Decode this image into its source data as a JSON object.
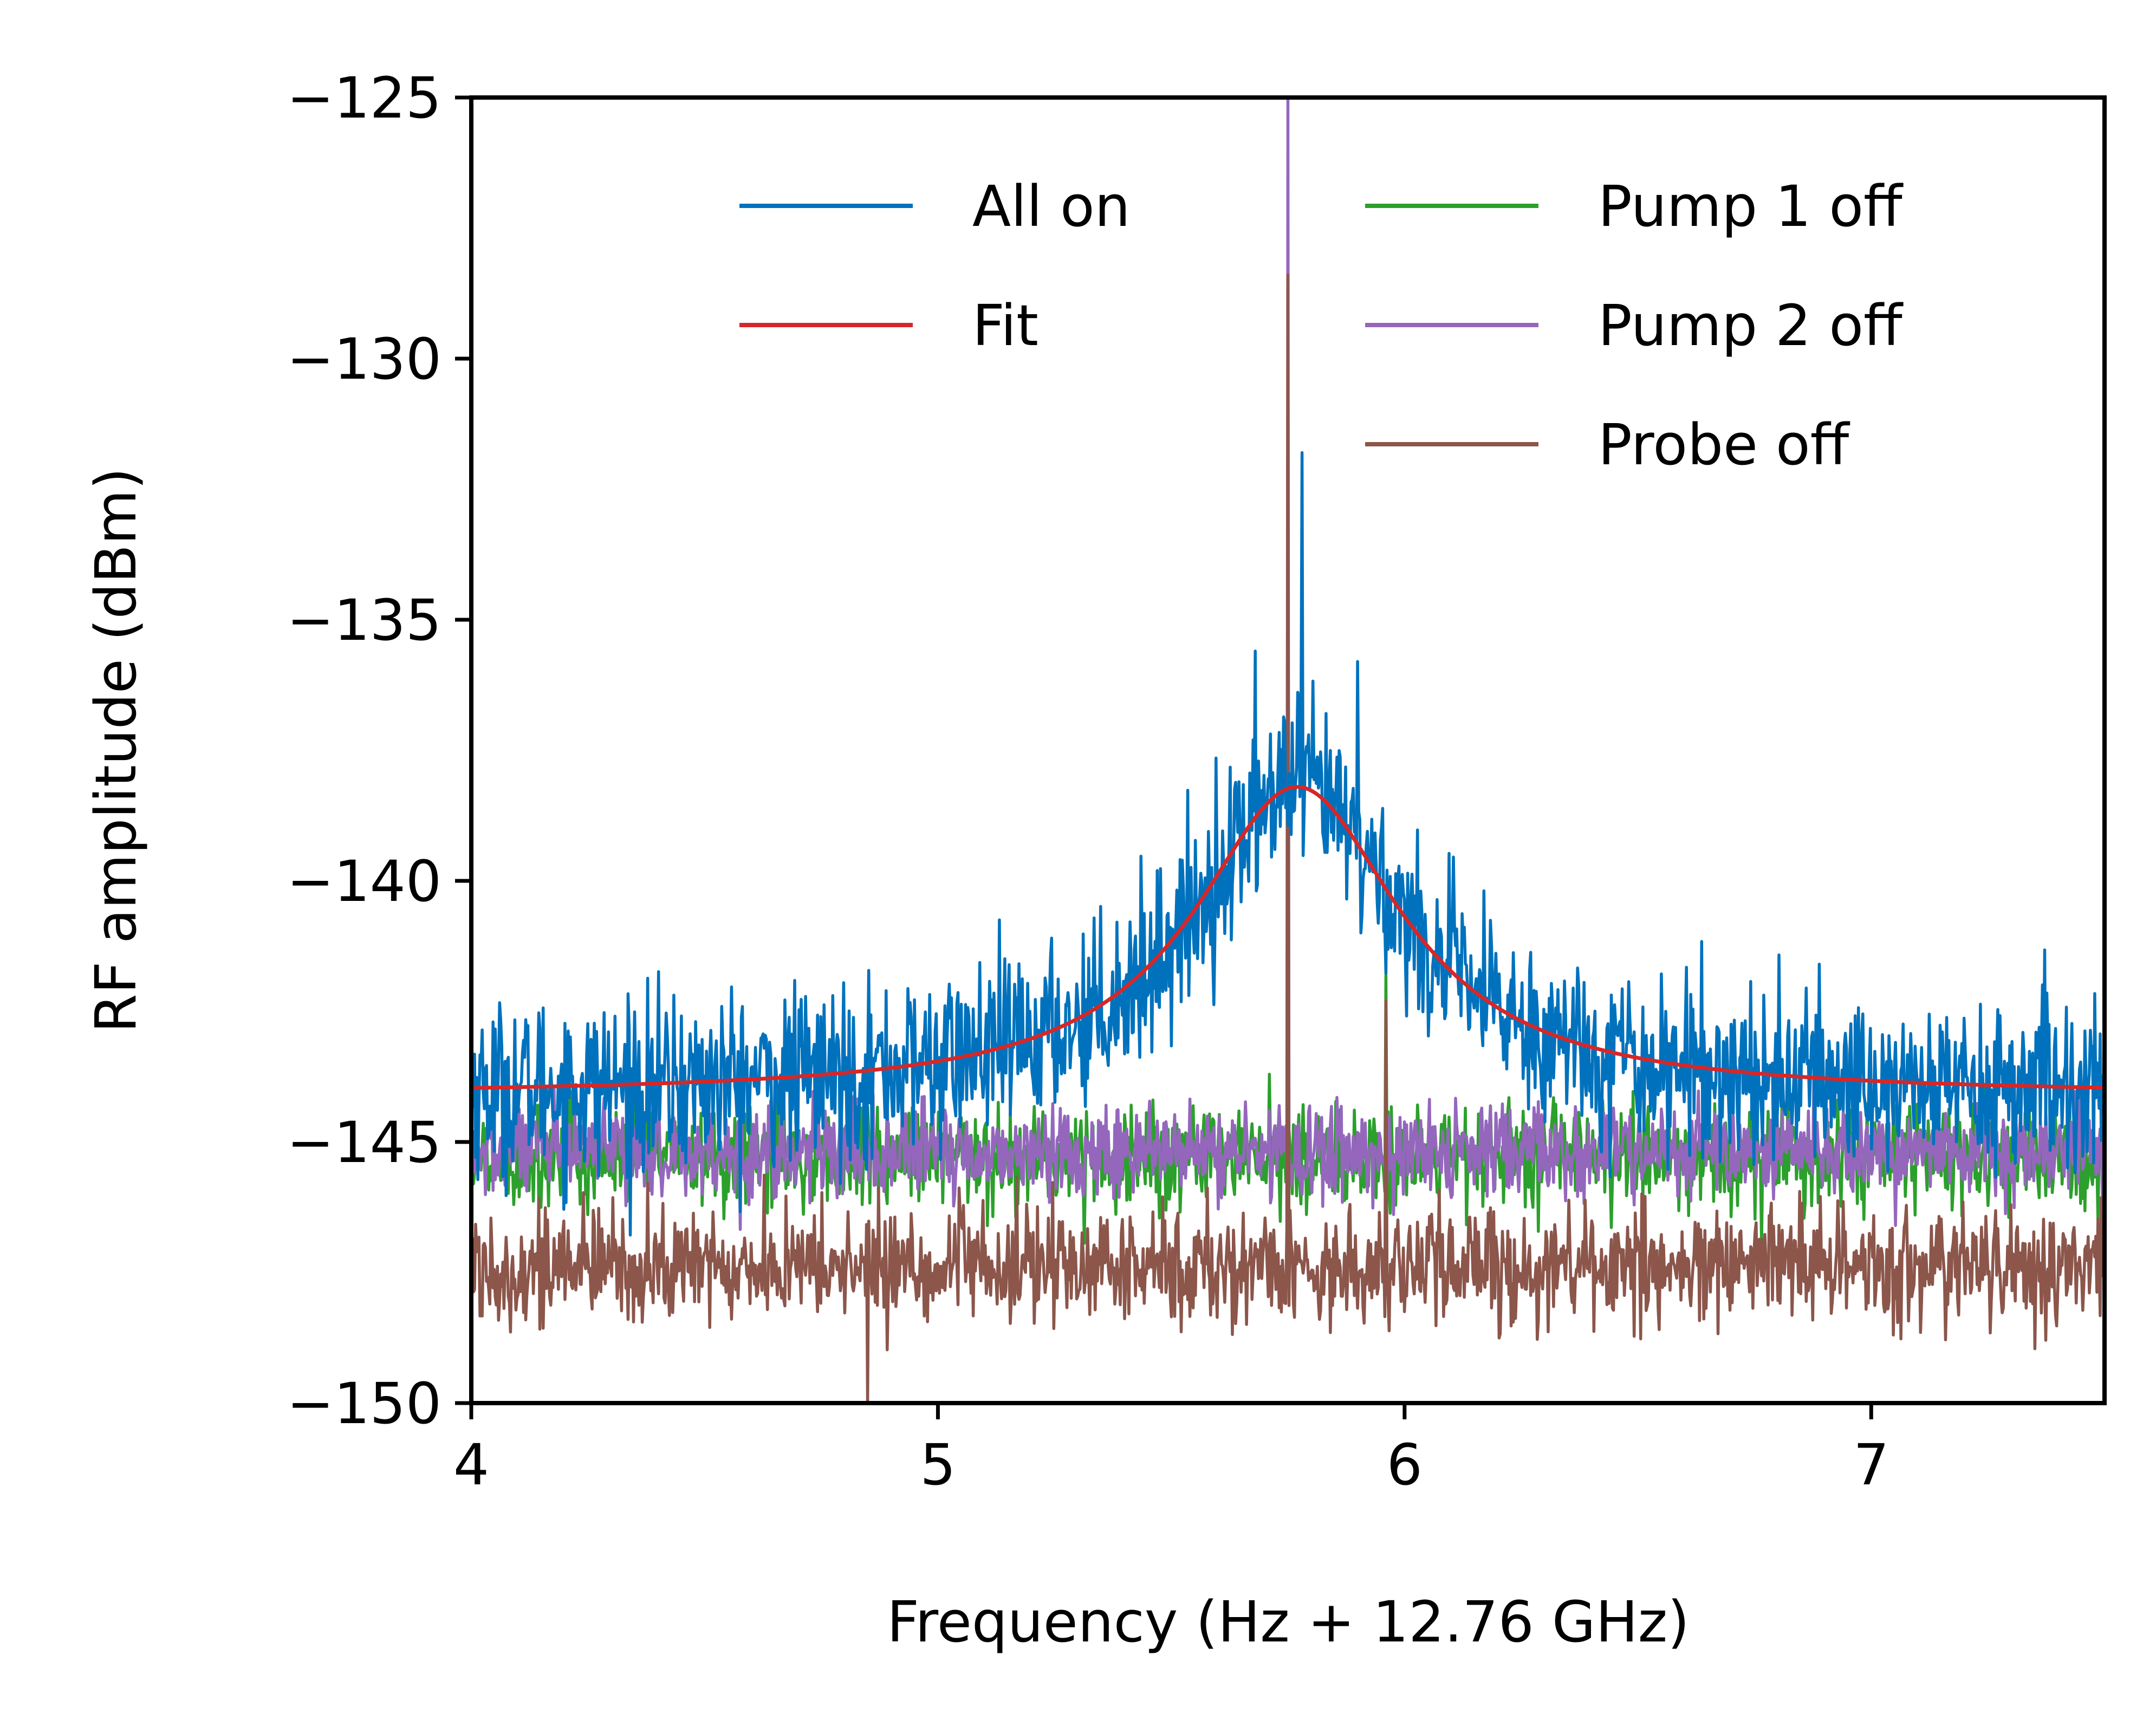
{
  "chart_data": {
    "type": "line",
    "title": "",
    "xlabel": "Frequency (Hz + 12.76 GHz)",
    "ylabel": "RF amplitude (dBm)",
    "xlim": [
      4,
      7.5
    ],
    "ylim": [
      -150,
      -125
    ],
    "xticks": [
      {
        "value": 4,
        "label": "4"
      },
      {
        "value": 5,
        "label": "5"
      },
      {
        "value": 6,
        "label": "6"
      },
      {
        "value": 7,
        "label": "7"
      }
    ],
    "yticks": [
      {
        "value": -125,
        "label": "−125"
      },
      {
        "value": -130,
        "label": "−130"
      },
      {
        "value": -135,
        "label": "−135"
      },
      {
        "value": -140,
        "label": "−140"
      },
      {
        "value": -145,
        "label": "−145"
      },
      {
        "value": -150,
        "label": "−150"
      }
    ],
    "grid": false,
    "legend": {
      "placement": "top-right",
      "columns": 2
    },
    "series": [
      {
        "name": "All on",
        "color": "#0072bd",
        "kind": "noisy-trace",
        "x_range": [
          4,
          7.5
        ],
        "baseline": {
          "type": "lorentzian",
          "offset": -144.1,
          "amplitude": 5.9,
          "center": 5.77,
          "hwhm": 0.27
        },
        "noise_amplitude_db": 1.5,
        "spikes": [
          {
            "x": 5.78,
            "y": -131.8
          },
          {
            "x": 5.68,
            "y": -135.6
          },
          {
            "x": 5.9,
            "y": -135.8
          }
        ]
      },
      {
        "name": "Fit",
        "color": "#d62728",
        "kind": "lorentzian",
        "x_range": [
          4,
          7.5
        ],
        "offset": -144.1,
        "amplitude": 5.9,
        "center": 5.77,
        "hwhm": 0.27
      },
      {
        "name": "Pump 1 off",
        "color": "#2ca02c",
        "kind": "noisy-trace",
        "x_range": [
          4,
          7.5
        ],
        "baseline": {
          "type": "flat",
          "level": -145.3
        },
        "noise_amplitude_db": 0.9,
        "spikes": [
          {
            "x": 5.96,
            "y": -141.8
          }
        ]
      },
      {
        "name": "Pump 2 off",
        "color": "#9467bd",
        "kind": "noisy-trace",
        "x_range": [
          4,
          7.5
        ],
        "baseline": {
          "type": "flat",
          "level": -145.2
        },
        "noise_amplitude_db": 0.8,
        "spikes": [
          {
            "x": 5.75,
            "y": -125
          }
        ]
      },
      {
        "name": "Probe off",
        "color": "#8c564b",
        "kind": "noisy-trace",
        "x_range": [
          4,
          7.5
        ],
        "baseline": {
          "type": "flat",
          "level": -147.4
        },
        "noise_amplitude_db": 1.0,
        "spikes": [
          {
            "x": 5.75,
            "y": -128.4
          },
          {
            "x": 5.96,
            "y": -142.3
          },
          {
            "x": 4.85,
            "y": -150
          }
        ]
      }
    ]
  }
}
